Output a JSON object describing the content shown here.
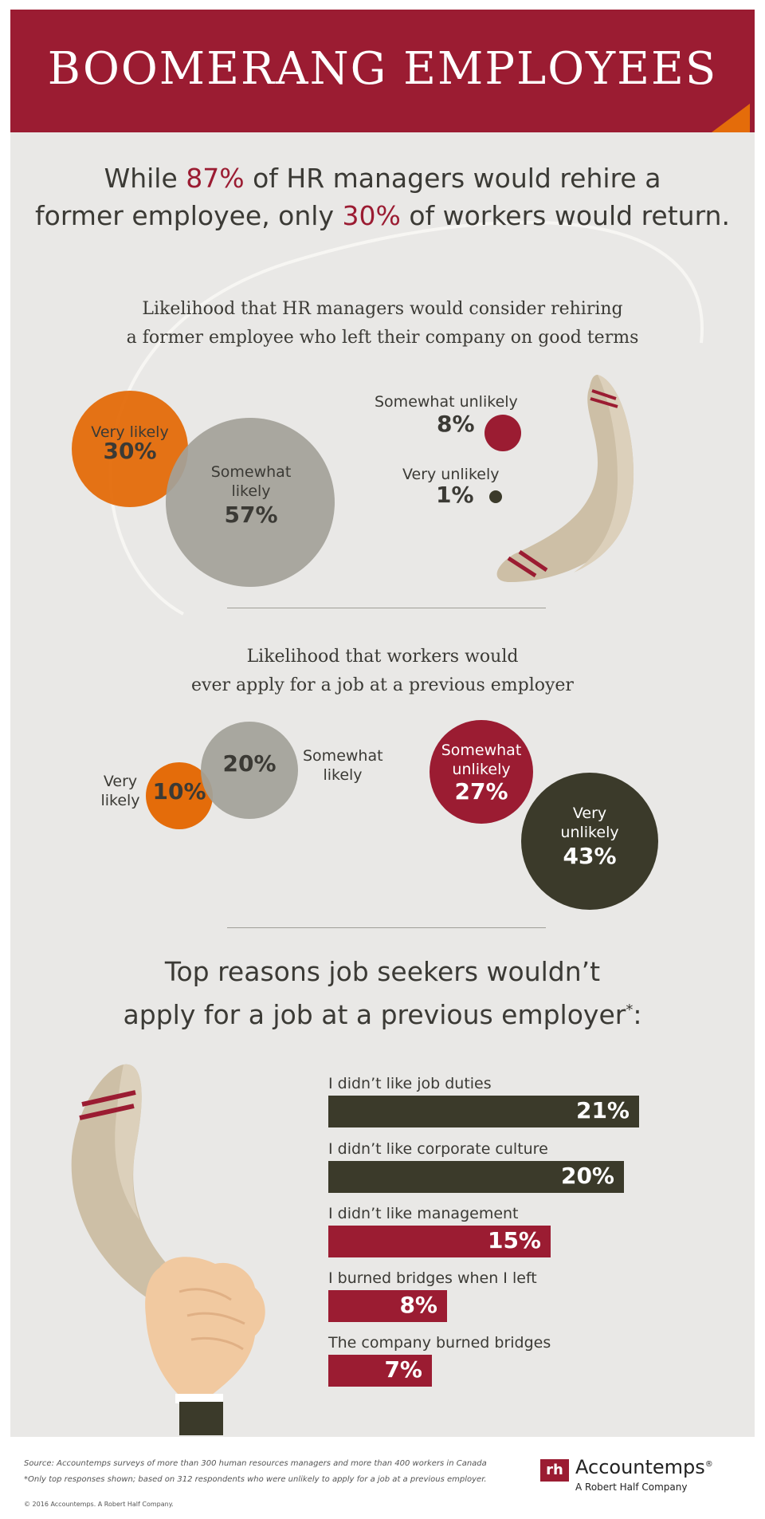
{
  "title": "BOOMERANG EMPLOYEES",
  "headline": {
    "line1_pre": "While ",
    "line1_hl": "87%",
    "line1_post": " of HR managers would rehire a",
    "line2_pre": "former employee, only ",
    "line2_hl": "30%",
    "line2_post": " of workers would return."
  },
  "section1": {
    "subtitle_line1": "Likelihood that HR managers would consider rehiring",
    "subtitle_line2": "a former employee who left their company on good terms"
  },
  "section2": {
    "subtitle_line1": "Likelihood that workers would",
    "subtitle_line2": "ever apply for a job at a previous employer"
  },
  "section3": {
    "title_line1": "Top reasons job seekers wouldn’t",
    "title_line2": "apply for a job at a previous employer",
    "asterisk": "*",
    "colon": ":"
  },
  "chart_data": [
    {
      "type": "bubble",
      "title": "Likelihood that HR managers would consider rehiring a former employee who left their company on good terms",
      "categories": [
        "Very likely",
        "Somewhat likely",
        "Somewhat unlikely",
        "Very unlikely"
      ],
      "values": [
        30,
        57,
        8,
        1
      ],
      "labels": [
        "30%",
        "57%",
        "8%",
        "1%"
      ],
      "colors": [
        "#e46c0a",
        "#a3a199",
        "#9b1c32",
        "#3b3a2a"
      ]
    },
    {
      "type": "bubble",
      "title": "Likelihood that workers would ever apply for a job at a previous employer",
      "categories": [
        "Very likely",
        "Somewhat likely",
        "Somewhat unlikely",
        "Very unlikely"
      ],
      "values": [
        10,
        20,
        27,
        43
      ],
      "labels": [
        "10%",
        "20%",
        "27%",
        "43%"
      ],
      "colors": [
        "#e46c0a",
        "#a3a199",
        "#9b1c32",
        "#3b3a2a"
      ]
    },
    {
      "type": "bar",
      "title": "Top reasons job seekers wouldn’t apply for a job at a previous employer*:",
      "categories": [
        "I didn’t like job duties",
        "I didn’t like corporate culture",
        "I didn’t like management",
        "I burned bridges when I left",
        "The company burned bridges"
      ],
      "values": [
        21,
        20,
        15,
        8,
        7
      ],
      "labels": [
        "21%",
        "20%",
        "15%",
        "8%",
        "7%"
      ],
      "colors": [
        "#3b3a2a",
        "#3b3a2a",
        "#9b1c32",
        "#9b1c32",
        "#9b1c32"
      ]
    }
  ],
  "hr_labels": {
    "very_likely": "Very likely",
    "somewhat_likely_1": "Somewhat",
    "somewhat_likely_2": "likely",
    "somewhat_unlikely": "Somewhat unlikely",
    "very_unlikely": "Very unlikely"
  },
  "worker_labels": {
    "very_likely_1": "Very",
    "very_likely_2": "likely",
    "somewhat_likely_1": "Somewhat",
    "somewhat_likely_2": "likely",
    "somewhat_unlikely_1": "Somewhat",
    "somewhat_unlikely_2": "unlikely",
    "very_unlikely_1": "Very",
    "very_unlikely_2": "unlikely"
  },
  "footer": {
    "source": "Source: Accountemps surveys of more than 300 human resources managers and more than 400 workers in Canada",
    "note": "*Only top responses shown; based on 312 respondents who were unlikely to apply for a job at a previous employer.",
    "copyright": "© 2016 Accountemps. A Robert Half Company.",
    "logo_mark": "rh",
    "logo_name": "Accountemps",
    "logo_reg": "®",
    "logo_tagline": "A Robert Half Company"
  },
  "colors": {
    "crimson": "#9b1c32",
    "orange": "#e46c0a",
    "gray": "#a3a199",
    "dark_olive": "#3b3a2a",
    "background": "#e9e8e6",
    "boomerang": "#cdbfa6"
  },
  "icons": [
    "boomerang-icon",
    "fist-holding-boomerang-icon"
  ]
}
